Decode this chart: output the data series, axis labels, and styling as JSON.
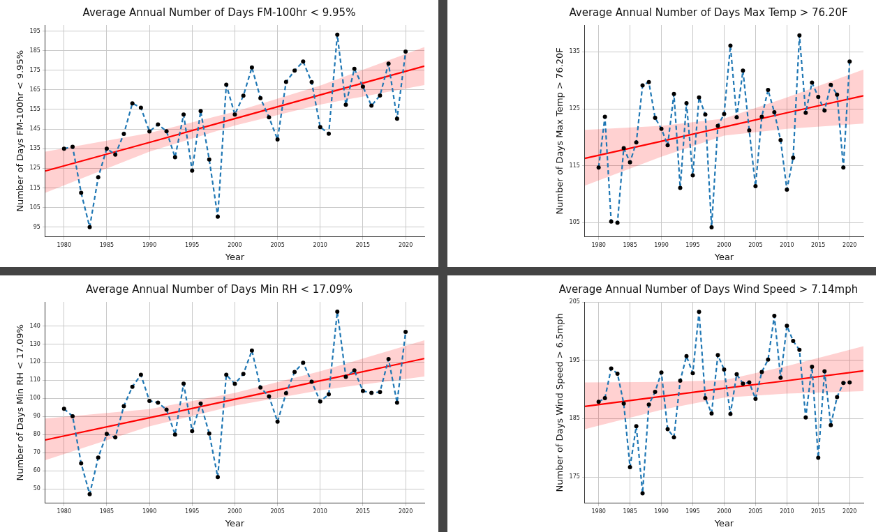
{
  "chart_data": [
    {
      "type": "line",
      "title": "Average Annual Number of Days FM-100hr < 9.95%",
      "xlabel": "Year",
      "ylabel": "Number of Days FM-100hr < 9.95%",
      "x": [
        1980,
        1981,
        1982,
        1983,
        1984,
        1985,
        1986,
        1987,
        1988,
        1989,
        1990,
        1991,
        1992,
        1993,
        1994,
        1995,
        1996,
        1997,
        1998,
        1999,
        2000,
        2001,
        2002,
        2003,
        2004,
        2005,
        2006,
        2007,
        2008,
        2009,
        2010,
        2011,
        2012,
        2013,
        2014,
        2015,
        2016,
        2017,
        2018,
        2019,
        2020
      ],
      "series": [
        {
          "color": "#1f77b4",
          "marker": "circle",
          "line_style": "dashed",
          "values": [
            135,
            136,
            112.5,
            95,
            120.4,
            135,
            132,
            142.5,
            158.1,
            155.9,
            143.8,
            147.3,
            143.9,
            130.6,
            152.4,
            123.8,
            154.2,
            129.5,
            100.3,
            167.6,
            152.4,
            162,
            176.4,
            160.8,
            151,
            139.7,
            169,
            174.8,
            179.4,
            168.9,
            146,
            142.6,
            193.1,
            157.4,
            175.7,
            166.6,
            156.9,
            162.1,
            178.4,
            150.3,
            184.5
          ]
        },
        {
          "type": "line",
          "color": "#ff0000",
          "marker": "none",
          "line_style": "solid",
          "x": [
            1977.8,
            1990,
            2000,
            2010,
            2022.2
          ],
          "values": [
            123.6,
            138.2,
            150.3,
            162.4,
            177.1
          ],
          "lower": [
            112.5,
            133.5,
            146.8,
            157.5,
            167.4
          ],
          "upper": [
            133.5,
            143,
            153.8,
            167.2,
            186.8
          ]
        }
      ],
      "xlim": [
        1977.8,
        2022.2
      ],
      "xticks": [
        1980,
        1985,
        1990,
        1995,
        2000,
        2005,
        2010,
        2015,
        2020
      ],
      "ylim": [
        90,
        198
      ],
      "yticks": [
        95,
        105,
        115,
        125,
        135,
        145,
        155,
        165,
        175,
        185,
        195
      ],
      "grid": true,
      "legend": false
    },
    {
      "type": "line",
      "title": "Average Annual Number of Days Max Temp > 76.20F",
      "xlabel": "Year",
      "ylabel": "Number of Days Max Temp > 76.20F",
      "x": [
        1980,
        1981,
        1982,
        1983,
        1984,
        1985,
        1986,
        1987,
        1988,
        1989,
        1990,
        1991,
        1992,
        1993,
        1994,
        1995,
        1996,
        1997,
        1998,
        1999,
        2000,
        2001,
        2002,
        2003,
        2004,
        2005,
        2006,
        2007,
        2008,
        2009,
        2010,
        2011,
        2012,
        2013,
        2014,
        2015,
        2016,
        2017,
        2018,
        2019,
        2020
      ],
      "series": [
        {
          "color": "#1f77b4",
          "marker": "circle",
          "line_style": "dashed",
          "values": [
            114.7,
            123.6,
            105.2,
            105,
            118.1,
            115.6,
            119.1,
            129.1,
            129.7,
            123.4,
            121.5,
            118.6,
            127.6,
            111.1,
            126,
            113.3,
            127,
            124,
            104.2,
            122,
            124.1,
            136.1,
            123.5,
            131.7,
            121.2,
            111.4,
            123.6,
            128.3,
            124.4,
            119.5,
            110.8,
            116.4,
            137.9,
            124.3,
            129.6,
            127.1,
            124.7,
            129.2,
            127.5,
            114.7,
            133.3
          ]
        },
        {
          "type": "line",
          "color": "#ff0000",
          "marker": "none",
          "line_style": "solid",
          "x": [
            1977.8,
            1990,
            2000,
            2010,
            2022.2
          ],
          "values": [
            116.3,
            119.3,
            121.8,
            124.3,
            127.3
          ],
          "lower": [
            111.5,
            116.6,
            120.3,
            121.5,
            122.4
          ],
          "upper": [
            121.3,
            122,
            123.3,
            127,
            131.9
          ]
        }
      ],
      "xlim": [
        1977.8,
        2022.2
      ],
      "xticks": [
        1980,
        1985,
        1990,
        1995,
        2000,
        2005,
        2010,
        2015,
        2020
      ],
      "ylim": [
        102.5,
        139.7
      ],
      "yticks": [
        105,
        115,
        125,
        135
      ],
      "grid": true,
      "legend": false
    },
    {
      "type": "line",
      "title": "Average Annual Number of Days Min RH < 17.09%",
      "xlabel": "Year",
      "ylabel": "Number of Days Min RH < 17.09%",
      "x": [
        1980,
        1981,
        1982,
        1983,
        1984,
        1985,
        1986,
        1987,
        1988,
        1989,
        1990,
        1991,
        1992,
        1993,
        1994,
        1995,
        1996,
        1997,
        1998,
        1999,
        2000,
        2001,
        2002,
        2003,
        2004,
        2005,
        2006,
        2007,
        2008,
        2009,
        2010,
        2011,
        2012,
        2013,
        2014,
        2015,
        2016,
        2017,
        2018,
        2019,
        2020
      ],
      "series": [
        {
          "color": "#1f77b4",
          "marker": "circle",
          "line_style": "dashed",
          "values": [
            94.2,
            90.1,
            64.1,
            47,
            67.3,
            80.4,
            78.4,
            95.7,
            106.4,
            113,
            98.6,
            97.6,
            93.8,
            80,
            108.1,
            81.9,
            97.1,
            80.6,
            56.5,
            113,
            108,
            113.5,
            126.4,
            106,
            101.1,
            87.1,
            102.8,
            114.6,
            119.7,
            109.2,
            98.3,
            102.2,
            147.9,
            111.9,
            115.4,
            104.1,
            103,
            103.5,
            121.7,
            97.6,
            136.7
          ]
        },
        {
          "type": "line",
          "color": "#ff0000",
          "marker": "none",
          "line_style": "solid",
          "x": [
            1977.8,
            1990,
            2000,
            2010,
            2022.2
          ],
          "values": [
            77,
            89.3,
            99.5,
            109.7,
            122
          ],
          "lower": [
            65.8,
            84.5,
            96,
            104.5,
            112.1
          ],
          "upper": [
            88.8,
            94,
            103,
            115,
            132.1
          ]
        }
      ],
      "xlim": [
        1977.8,
        2022.2
      ],
      "xticks": [
        1980,
        1985,
        1990,
        1995,
        2000,
        2005,
        2010,
        2015,
        2020
      ],
      "ylim": [
        42,
        153.3
      ],
      "yticks": [
        50,
        60,
        70,
        80,
        90,
        100,
        110,
        120,
        130,
        140
      ],
      "grid": true,
      "legend": false
    },
    {
      "type": "line",
      "title": "Average Annual Number of Days Wind Speed > 7.14mph",
      "xlabel": "Year",
      "ylabel": "Number of Days Wind Speed > 6.5mph",
      "x": [
        1980,
        1981,
        1982,
        1983,
        1984,
        1985,
        1986,
        1987,
        1988,
        1989,
        1990,
        1991,
        1992,
        1993,
        1994,
        1995,
        1996,
        1997,
        1998,
        1999,
        2000,
        2001,
        2002,
        2003,
        2004,
        2005,
        2006,
        2007,
        2008,
        2009,
        2010,
        2011,
        2012,
        2013,
        2014,
        2015,
        2016,
        2017,
        2018,
        2019,
        2020
      ],
      "series": [
        {
          "color": "#1f77b4",
          "marker": "circle",
          "line_style": "dashed",
          "values": [
            187.9,
            188.5,
            193.6,
            192.7,
            187.6,
            176.7,
            183.7,
            172.2,
            187.4,
            189.6,
            192.9,
            183.2,
            181.8,
            191.5,
            195.7,
            192.8,
            203.3,
            188.5,
            185.9,
            195.9,
            193.4,
            185.8,
            192.6,
            191,
            191.2,
            188.4,
            193,
            195.1,
            202.6,
            192,
            200.9,
            198.3,
            196.8,
            185.2,
            193.9,
            178.3,
            193.1,
            183.9,
            188.7,
            191.1,
            191.2
          ]
        },
        {
          "type": "line",
          "color": "#ff0000",
          "marker": "none",
          "line_style": "solid",
          "x": [
            1977.8,
            1990,
            2000,
            2010,
            2022.2
          ],
          "values": [
            187.1,
            188.8,
            190.2,
            191.5,
            193.2
          ],
          "lower": [
            183.2,
            186.5,
            188.6,
            189.3,
            189.7
          ],
          "upper": [
            191.2,
            191.3,
            191.6,
            194,
            197.4
          ]
        }
      ],
      "xlim": [
        1977.8,
        2022.2
      ],
      "xticks": [
        1980,
        1985,
        1990,
        1995,
        2000,
        2005,
        2010,
        2015,
        2020
      ],
      "ylim": [
        170.5,
        205
      ],
      "yticks": [
        175,
        185,
        195,
        205
      ],
      "grid": true,
      "legend": false
    }
  ]
}
